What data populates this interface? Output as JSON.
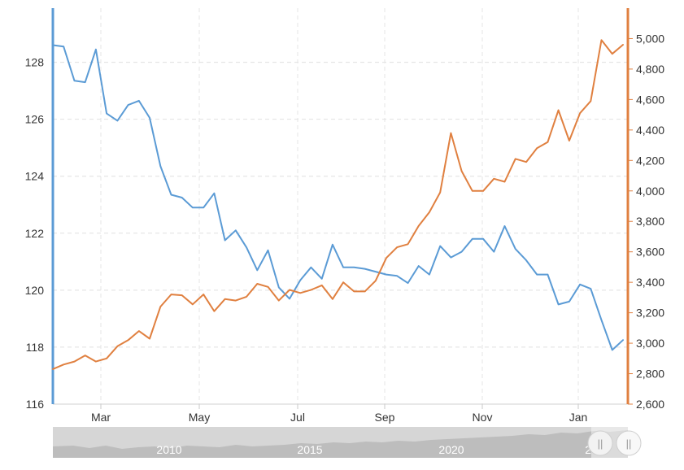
{
  "chart_data": {
    "type": "line",
    "title": "",
    "xlabel": "",
    "ylabel": "",
    "x_tick_labels": [
      "Mar",
      "May",
      "Jul",
      "Sep",
      "Nov",
      "Jan"
    ],
    "y_left": {
      "ticks": [
        "116",
        "118",
        "120",
        "122",
        "124",
        "126",
        "128"
      ],
      "ylim": [
        116,
        129.9
      ],
      "color": "#5b9bd5"
    },
    "y_right": {
      "ticks": [
        "2,600",
        "2,800",
        "3,000",
        "3,200",
        "3,400",
        "3,600",
        "3,800",
        "4,000",
        "4,200",
        "4,400",
        "4,600",
        "4,800",
        "5,000"
      ],
      "ylim": [
        2600,
        5200
      ],
      "color": "#e08040"
    },
    "grid": true,
    "series": [
      {
        "axis": "left",
        "color": "#5b9bd5",
        "values": [
          128.6,
          128.55,
          127.35,
          127.3,
          128.45,
          126.2,
          125.95,
          126.5,
          126.65,
          126.05,
          124.35,
          123.35,
          123.25,
          122.9,
          122.9,
          123.4,
          121.75,
          122.1,
          121.5,
          120.7,
          121.4,
          120.1,
          119.7,
          120.35,
          120.8,
          120.4,
          121.6,
          120.8,
          120.8,
          120.75,
          120.65,
          120.55,
          120.5,
          120.25,
          120.85,
          120.55,
          121.55,
          121.15,
          121.35,
          121.8,
          121.8,
          121.35,
          122.25,
          121.45,
          121.05,
          120.55,
          120.55,
          119.5,
          119.6,
          120.2,
          120.05,
          118.95,
          117.9,
          118.25
        ]
      },
      {
        "axis": "right",
        "color": "#e08040",
        "values": [
          2830,
          2860,
          2880,
          2920,
          2880,
          2900,
          2980,
          3020,
          3080,
          3030,
          3240,
          3320,
          3315,
          3255,
          3320,
          3210,
          3290,
          3280,
          3305,
          3390,
          3370,
          3280,
          3350,
          3330,
          3350,
          3380,
          3290,
          3400,
          3340,
          3340,
          3410,
          3560,
          3630,
          3650,
          3770,
          3860,
          3990,
          4380,
          4130,
          4000,
          4000,
          4080,
          4060,
          4210,
          4190,
          4280,
          4320,
          4530,
          4330,
          4510,
          4590,
          4990,
          4900,
          4960
        ]
      }
    ]
  },
  "navigator": {
    "labels": [
      "2010",
      "2015",
      "2020",
      "20"
    ],
    "handle_left_glyph": "||",
    "handle_right_glyph": "||"
  }
}
